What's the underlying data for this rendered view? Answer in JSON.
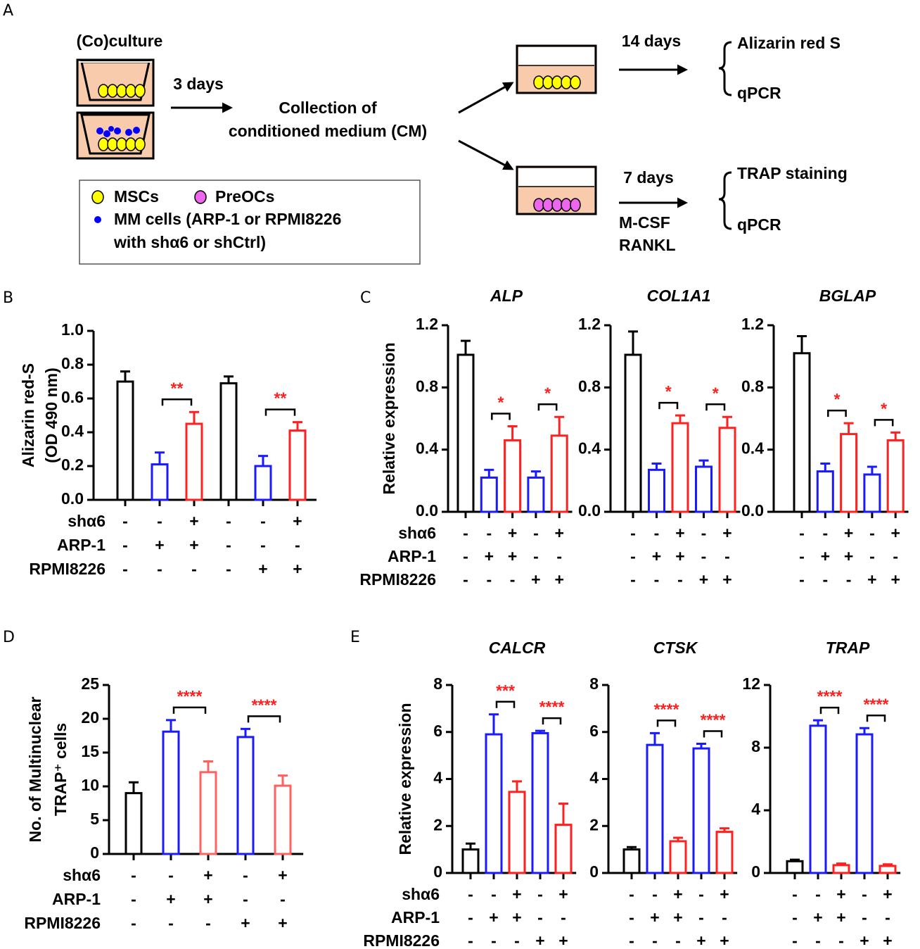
{
  "panel_labels": [
    "A",
    "B",
    "C",
    "D",
    "E"
  ],
  "diagram": {
    "coculture": "(Co)culture",
    "step1": "3 days",
    "collection": [
      "Collection of",
      "conditioned medium (CM)"
    ],
    "step2": "14 days",
    "step3": "7 days",
    "factors": [
      "M-CSF",
      "RANKL"
    ],
    "outcomes_top": [
      "Alizarin red S",
      "qPCR"
    ],
    "outcomes_bottom": [
      "TRAP staining",
      "qPCR"
    ],
    "legend": [
      "MSCs",
      "PreOCs",
      "MM cells (ARP-1 or RPMI8226",
      "with shα6 or shCtrl)"
    ]
  },
  "chart_data": [
    {
      "type": "bar",
      "ylabel": [
        "Alizarin red-S",
        "(OD 490 nm)"
      ],
      "values": [
        0.7,
        0.21,
        0.45,
        0.69,
        0.2,
        0.41
      ],
      "errors": [
        0.06,
        0.07,
        0.07,
        0.04,
        0.06,
        0.05
      ],
      "colors": [
        "#000000",
        "#1a1aff",
        "#ff2020",
        "#000000",
        "#1a1aff",
        "#ff2020"
      ],
      "conditions": [
        {
          "name": "shα6",
          "signs": [
            "-",
            "-",
            "+",
            "-",
            "-",
            "+"
          ]
        },
        {
          "name": "ARP-1",
          "signs": [
            "-",
            "+",
            "+",
            "-",
            "-",
            "-"
          ]
        },
        {
          "name": "RPMI8226",
          "signs": [
            "-",
            "-",
            "-",
            "-",
            "+",
            "+"
          ]
        }
      ],
      "significance": [
        "**",
        "**"
      ],
      "ylim": [
        0,
        1
      ],
      "yticks": [
        {
          "value": 0,
          "label": "0.0"
        },
        0.2,
        0.4,
        0.6,
        0.8,
        {
          "value": 1,
          "label": "1.0"
        }
      ]
    },
    {
      "type": "bar",
      "title": "ALP",
      "ylabel": "Relative expression",
      "values": [
        1.01,
        0.22,
        0.46,
        0.22,
        0.49
      ],
      "errors": [
        0.09,
        0.05,
        0.09,
        0.04,
        0.12
      ],
      "colors": [
        "#000000",
        "#1a1aff",
        "#ff2020",
        "#1a1aff",
        "#ff2020"
      ],
      "conditions": [
        {
          "name": "shα6",
          "signs": [
            "-",
            "-",
            "+",
            "-",
            "+"
          ]
        },
        {
          "name": "ARP-1",
          "signs": [
            "-",
            "+",
            "+",
            "-",
            "-"
          ]
        },
        {
          "name": "RPMI8226",
          "signs": [
            "-",
            "-",
            "-",
            "+",
            "+"
          ]
        }
      ],
      "significance": [
        "*",
        "*"
      ],
      "ylim": [
        0,
        1.2
      ],
      "yticks": [
        {
          "value": 0,
          "label": "0.0"
        },
        0.4,
        0.8,
        1.2
      ]
    },
    {
      "type": "bar",
      "title": "COL1A1",
      "values": [
        1.01,
        0.27,
        0.57,
        0.29,
        0.54
      ],
      "errors": [
        0.15,
        0.04,
        0.05,
        0.04,
        0.07
      ],
      "colors": [
        "#000000",
        "#1a1aff",
        "#ff2020",
        "#1a1aff",
        "#ff2020"
      ],
      "conditions": [
        {
          "signs": [
            "-",
            "-",
            "+",
            "-",
            "+"
          ]
        },
        {
          "signs": [
            "-",
            "+",
            "+",
            "-",
            "-"
          ]
        },
        {
          "signs": [
            "-",
            "-",
            "-",
            "+",
            "+"
          ]
        }
      ],
      "significance": [
        "*",
        "*"
      ],
      "ylim": [
        0,
        1.2
      ],
      "yticks": [
        {
          "value": 0,
          "label": "0.0"
        },
        0.4,
        0.8,
        1.2
      ]
    },
    {
      "type": "bar",
      "title": "BGLAP",
      "values": [
        1.02,
        0.26,
        0.5,
        0.24,
        0.46
      ],
      "errors": [
        0.11,
        0.05,
        0.07,
        0.05,
        0.05
      ],
      "colors": [
        "#000000",
        "#1a1aff",
        "#ff2020",
        "#1a1aff",
        "#ff2020"
      ],
      "conditions": [
        {
          "signs": [
            "-",
            "-",
            "+",
            "-",
            "+"
          ]
        },
        {
          "signs": [
            "-",
            "+",
            "+",
            "-",
            "-"
          ]
        },
        {
          "signs": [
            "-",
            "-",
            "-",
            "+",
            "+"
          ]
        }
      ],
      "significance": [
        "*",
        "*"
      ],
      "ylim": [
        0,
        1.2
      ],
      "yticks": [
        {
          "value": 0,
          "label": "0.0"
        },
        0.4,
        0.8,
        1.2
      ]
    },
    {
      "type": "bar",
      "ylabel": [
        "No. of Multinuclear",
        "TRAP⁺ cells"
      ],
      "values": [
        9.0,
        18.1,
        12.1,
        17.3,
        10.1
      ],
      "errors": [
        1.6,
        1.7,
        1.6,
        1.2,
        1.5
      ],
      "colors": [
        "#000000",
        "#1a1aff",
        "#ff6060",
        "#1a1aff",
        "#ff6060"
      ],
      "conditions": [
        {
          "name": "shα6",
          "signs": [
            "-",
            "-",
            "+",
            "-",
            "+"
          ]
        },
        {
          "name": "ARP-1",
          "signs": [
            "-",
            "+",
            "+",
            "-",
            "-"
          ]
        },
        {
          "name": "RPMI8226",
          "signs": [
            "-",
            "-",
            "-",
            "+",
            "+"
          ]
        }
      ],
      "significance": [
        "****",
        "****"
      ],
      "ylim": [
        0,
        25
      ],
      "yticks": [
        0,
        5,
        10,
        15,
        20,
        25
      ]
    },
    {
      "type": "bar",
      "title": "CALCR",
      "ylabel": "Relative expression",
      "values": [
        1.0,
        5.9,
        3.45,
        5.95,
        2.05
      ],
      "errors": [
        0.25,
        0.85,
        0.45,
        0.1,
        0.9
      ],
      "colors": [
        "#000000",
        "#1a1aff",
        "#ff2020",
        "#1a1aff",
        "#ff2020"
      ],
      "conditions": [
        {
          "name": "shα6",
          "signs": [
            "-",
            "-",
            "+",
            "-",
            "+"
          ]
        },
        {
          "name": "ARP-1",
          "signs": [
            "-",
            "+",
            "+",
            "-",
            "-"
          ]
        },
        {
          "name": "RPMI8226",
          "signs": [
            "-",
            "-",
            "-",
            "+",
            "+"
          ]
        }
      ],
      "significance": [
        "***",
        "****"
      ],
      "ylim": [
        0,
        8
      ],
      "yticks": [
        0,
        2,
        4,
        6,
        8
      ]
    },
    {
      "type": "bar",
      "title": "CTSK",
      "values": [
        1.0,
        5.45,
        1.35,
        5.3,
        1.75
      ],
      "errors": [
        0.1,
        0.5,
        0.15,
        0.2,
        0.15
      ],
      "colors": [
        "#000000",
        "#1a1aff",
        "#ff2020",
        "#1a1aff",
        "#ff2020"
      ],
      "conditions": [
        {
          "signs": [
            "-",
            "-",
            "+",
            "-",
            "+"
          ]
        },
        {
          "signs": [
            "-",
            "+",
            "+",
            "-",
            "-"
          ]
        },
        {
          "signs": [
            "-",
            "-",
            "-",
            "+",
            "+"
          ]
        }
      ],
      "significance": [
        "****",
        "****"
      ],
      "ylim": [
        0,
        8
      ],
      "yticks": [
        0,
        2,
        4,
        6,
        8
      ]
    },
    {
      "type": "bar",
      "title": "TRAP",
      "values": [
        0.75,
        9.4,
        0.5,
        8.85,
        0.45
      ],
      "errors": [
        0.1,
        0.35,
        0.1,
        0.4,
        0.1
      ],
      "colors": [
        "#000000",
        "#1a1aff",
        "#ff2020",
        "#1a1aff",
        "#ff2020"
      ],
      "conditions": [
        {
          "signs": [
            "-",
            "-",
            "+",
            "-",
            "+"
          ]
        },
        {
          "signs": [
            "-",
            "+",
            "+",
            "-",
            "-"
          ]
        },
        {
          "signs": [
            "-",
            "-",
            "-",
            "+",
            "+"
          ]
        }
      ],
      "significance": [
        "****",
        "****"
      ],
      "ylim": [
        0,
        12
      ],
      "yticks": [
        0,
        4,
        8,
        12
      ]
    }
  ]
}
